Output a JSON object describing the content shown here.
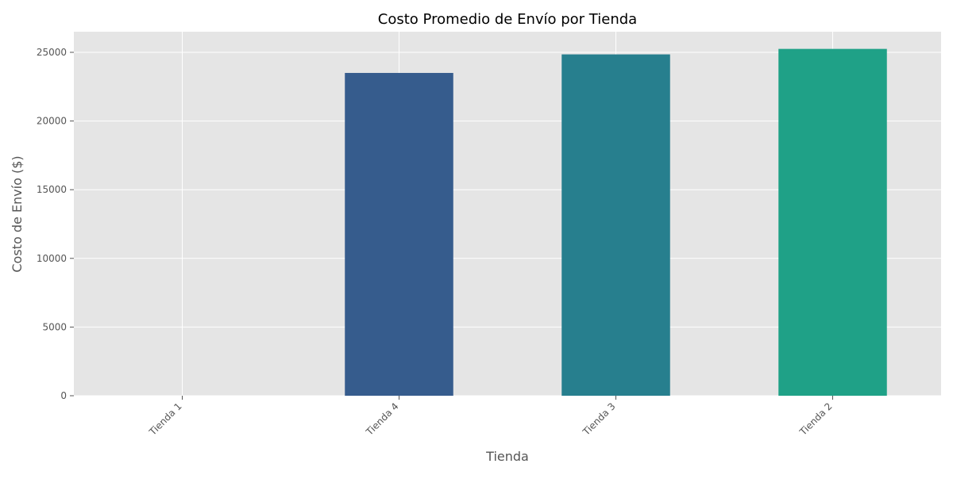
{
  "chart_data": {
    "type": "bar",
    "title": "Costo Promedio de Envío por Tienda",
    "xlabel": "Tienda",
    "ylabel": "Costo de Envío ($)",
    "categories": [
      "Tienda 1",
      "Tienda 4",
      "Tienda 3",
      "Tienda 2"
    ],
    "values": [
      0,
      23500,
      24850,
      25250
    ],
    "ylim": [
      0,
      26500
    ],
    "yticks": [
      0,
      5000,
      10000,
      15000,
      20000,
      25000
    ],
    "grid": true,
    "colors": [
      "#440154",
      "#365c8d",
      "#277f8e",
      "#1fa187"
    ],
    "background": "#e5e5e5",
    "grid_color": "#ffffff"
  }
}
